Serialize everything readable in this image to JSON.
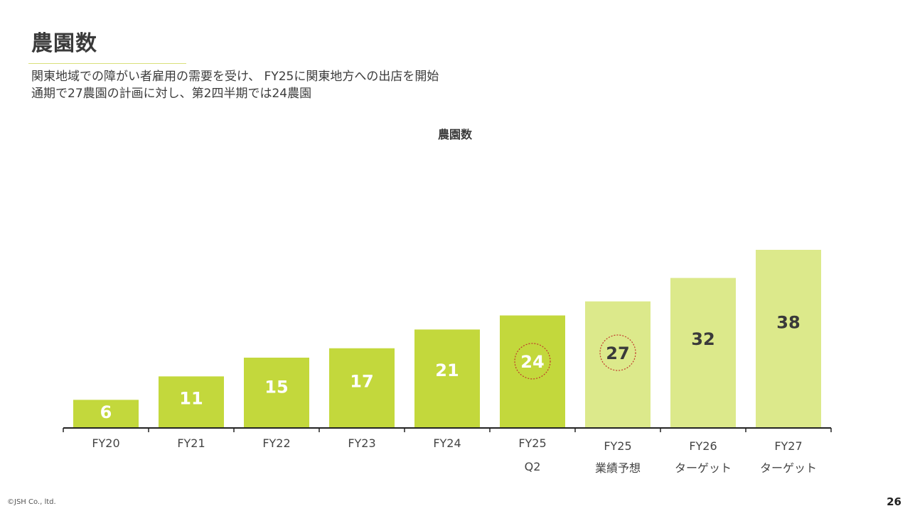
{
  "slide": {
    "title": "農園数",
    "subtitle_lines": [
      "関東地域での障がい者雇用の需要を受け、 FY25に関東地方への出店を開始",
      "通期で27農園の計画に対し、第2四半期では24農園"
    ],
    "copyright": "©JSH Co., ltd.",
    "page_number": "26"
  },
  "colors": {
    "actual": "#c3d83c",
    "forecast": "#dce98b",
    "axis": "#222222",
    "highlight_circle": "#c0392b",
    "label_light": "#ffffff",
    "label_dark": "#3a3a3a"
  },
  "chart_data": {
    "type": "bar",
    "title": "農園数",
    "categories": [
      [
        "FY20"
      ],
      [
        "FY21"
      ],
      [
        "FY22"
      ],
      [
        "FY23"
      ],
      [
        "FY24"
      ],
      [
        "FY25",
        "Q2"
      ],
      [
        "FY25",
        "業績予想"
      ],
      [
        "FY26",
        "ターゲット"
      ],
      [
        "FY27",
        "ターゲット"
      ]
    ],
    "values": [
      6,
      11,
      15,
      17,
      21,
      24,
      27,
      32,
      38
    ],
    "bar_kind": [
      "actual",
      "actual",
      "actual",
      "actual",
      "actual",
      "actual",
      "forecast",
      "forecast",
      "forecast"
    ],
    "circled": [
      5,
      6
    ],
    "ylim": [
      0,
      38
    ],
    "xlabel": "",
    "ylabel": "",
    "grid": false,
    "legend": "none"
  }
}
